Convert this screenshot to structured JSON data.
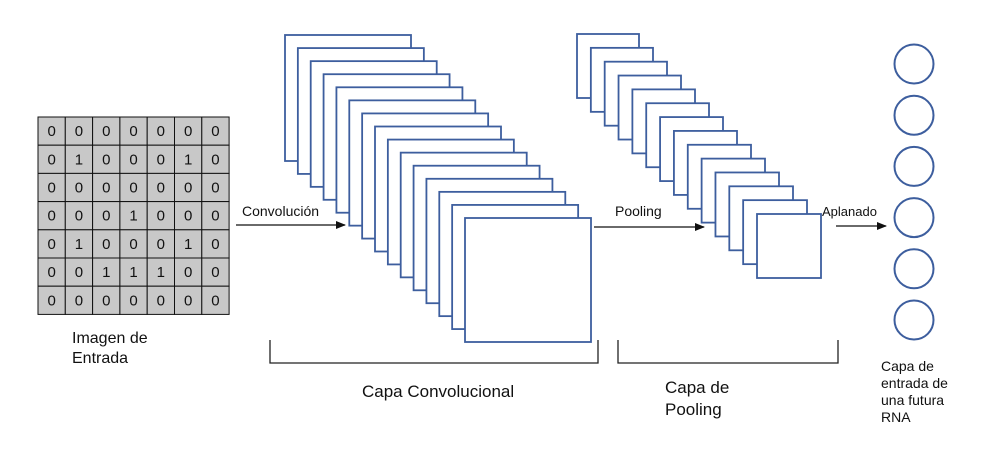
{
  "colors": {
    "frame_stroke": "#3d5e9e",
    "grid_fill": "#c8c8c8",
    "grid_stroke": "#111111",
    "arrow": "#111111",
    "bracket": "#222222"
  },
  "input_image": {
    "matrix": [
      [
        "0",
        "0",
        "0",
        "0",
        "0",
        "0",
        "0"
      ],
      [
        "0",
        "1",
        "0",
        "0",
        "0",
        "1",
        "0"
      ],
      [
        "0",
        "0",
        "0",
        "0",
        "0",
        "0",
        "0"
      ],
      [
        "0",
        "0",
        "0",
        "1",
        "0",
        "0",
        "0"
      ],
      [
        "0",
        "1",
        "0",
        "0",
        "0",
        "1",
        "0"
      ],
      [
        "0",
        "0",
        "1",
        "1",
        "1",
        "0",
        "0"
      ],
      [
        "0",
        "0",
        "0",
        "0",
        "0",
        "0",
        "0"
      ]
    ],
    "label_line1": "Imagen de",
    "label_line2": "Entrada"
  },
  "arrows": {
    "convolution": "Convolución",
    "pooling": "Pooling",
    "flatten": "Aplanado"
  },
  "conv_layer": {
    "label": "Capa Convolucional",
    "feature_map_count": 15
  },
  "pool_layer": {
    "label_line1": "Capa de",
    "label_line2": "Pooling",
    "feature_map_count": 14
  },
  "output": {
    "neuron_count": 6,
    "label_line1": "Capa de",
    "label_line2": "entrada de",
    "label_line3": "una futura",
    "label_line4": "RNA"
  }
}
